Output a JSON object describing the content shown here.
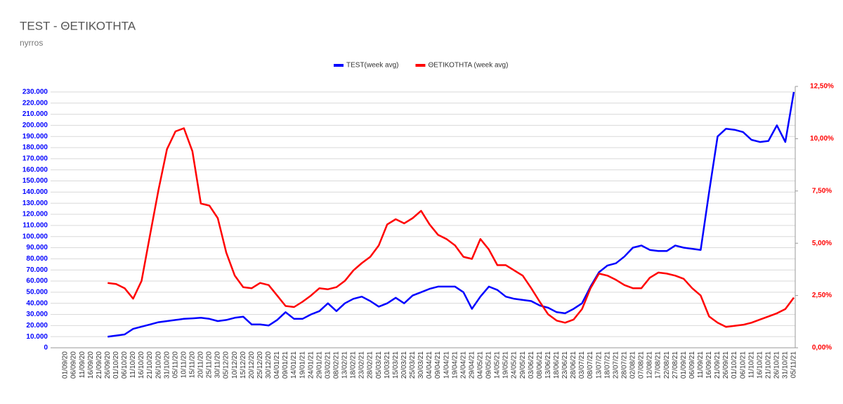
{
  "chart_data": {
    "type": "line",
    "title": "TEST - ΘΕΤΙΚΟΤΗΤΑ",
    "subtitle": "nyrros",
    "categories": [
      "01/09/20",
      "06/09/20",
      "11/09/20",
      "16/09/20",
      "21/09/20",
      "26/09/20",
      "01/10/20",
      "06/10/20",
      "11/10/20",
      "16/10/20",
      "21/10/20",
      "26/10/20",
      "31/10/20",
      "05/11/20",
      "10/11/20",
      "15/11/20",
      "20/11/20",
      "25/11/20",
      "30/11/20",
      "05/12/20",
      "10/12/20",
      "15/12/20",
      "20/12/20",
      "25/12/20",
      "30/12/20",
      "04/01/21",
      "09/01/21",
      "14/01/21",
      "19/01/21",
      "24/01/21",
      "29/01/21",
      "03/02/21",
      "08/02/21",
      "13/02/21",
      "18/02/21",
      "23/02/21",
      "28/02/21",
      "05/03/21",
      "10/03/21",
      "15/03/21",
      "20/03/21",
      "25/03/21",
      "30/03/21",
      "04/04/21",
      "09/04/21",
      "14/04/21",
      "19/04/21",
      "24/04/21",
      "29/04/21",
      "04/05/21",
      "09/05/21",
      "14/05/21",
      "19/05/21",
      "24/05/21",
      "29/05/21",
      "03/06/21",
      "08/06/21",
      "13/06/21",
      "18/06/21",
      "23/06/21",
      "28/06/21",
      "03/07/21",
      "08/07/21",
      "13/07/21",
      "18/07/21",
      "23/07/21",
      "28/07/21",
      "02/08/21",
      "07/08/21",
      "12/08/21",
      "17/08/21",
      "22/08/21",
      "27/08/21",
      "01/09/21",
      "06/09/21",
      "11/09/21",
      "16/09/21",
      "21/09/21",
      "26/09/21",
      "01/10/21",
      "06/10/21",
      "11/10/21",
      "16/10/21",
      "21/10/21",
      "26/10/21",
      "31/10/21",
      "05/11/21"
    ],
    "series": [
      {
        "name": "TEST(week avg)",
        "color": "#0000ff",
        "axis": "y",
        "values": [
          null,
          null,
          null,
          null,
          null,
          10000,
          11000,
          12000,
          17000,
          19000,
          21000,
          23000,
          24000,
          25000,
          26000,
          26500,
          27000,
          26000,
          24000,
          25000,
          27000,
          28000,
          21000,
          21000,
          20000,
          25000,
          32000,
          26000,
          26000,
          30000,
          33000,
          40000,
          33000,
          40000,
          44000,
          46000,
          42000,
          37000,
          40000,
          45000,
          40000,
          47000,
          50000,
          53000,
          55000,
          55000,
          55000,
          50000,
          35000,
          46000,
          55000,
          52000,
          46000,
          44000,
          43000,
          42000,
          38000,
          36000,
          32000,
          31000,
          35000,
          40000,
          55000,
          68000,
          74000,
          76000,
          82000,
          90000,
          92000,
          88000,
          87000,
          87000,
          92000,
          90000,
          89000,
          88000,
          140000,
          190000,
          197000,
          196000,
          194000,
          187000,
          185000,
          186000,
          200000,
          185000,
          230000
        ]
      },
      {
        "name": "ΘΕΤΙΚΟΤΗΤΑ (week avg)",
        "color": "#ff0000",
        "axis": "y2",
        "values": [
          null,
          null,
          null,
          null,
          null,
          3.1,
          3.05,
          2.85,
          2.35,
          3.2,
          5.4,
          7.55,
          9.5,
          10.35,
          10.5,
          9.4,
          6.9,
          6.8,
          6.2,
          4.55,
          3.45,
          2.9,
          2.85,
          3.1,
          3.0,
          2.5,
          2.0,
          1.95,
          2.2,
          2.5,
          2.85,
          2.8,
          2.9,
          3.2,
          3.7,
          4.05,
          4.35,
          4.9,
          5.9,
          6.15,
          5.95,
          6.2,
          6.55,
          5.9,
          5.4,
          5.2,
          4.9,
          4.35,
          4.25,
          5.2,
          4.7,
          3.95,
          3.95,
          3.7,
          3.45,
          2.85,
          2.2,
          1.6,
          1.3,
          1.2,
          1.35,
          1.85,
          2.85,
          3.55,
          3.45,
          3.25,
          3.0,
          2.85,
          2.85,
          3.35,
          3.6,
          3.55,
          3.45,
          3.3,
          2.85,
          2.5,
          1.5,
          1.2,
          1.0,
          1.05,
          1.1,
          1.2,
          1.35,
          1.5,
          1.65,
          1.85,
          2.4
        ]
      }
    ],
    "ylim": [
      0,
      235000
    ],
    "yticks": [
      0,
      {
        "value": 10000,
        "label": "10.000"
      },
      {
        "value": 20000,
        "label": "20.000"
      },
      {
        "value": 30000,
        "label": "30.000"
      },
      {
        "value": 40000,
        "label": "40.000"
      },
      {
        "value": 50000,
        "label": "50.000"
      },
      {
        "value": 60000,
        "label": "60.000"
      },
      {
        "value": 70000,
        "label": "70.000"
      },
      {
        "value": 80000,
        "label": "80.000"
      },
      {
        "value": 90000,
        "label": "90.000"
      },
      {
        "value": 100000,
        "label": "100.000"
      },
      {
        "value": 110000,
        "label": "110.000"
      },
      {
        "value": 120000,
        "label": "120.000"
      },
      {
        "value": 130000,
        "label": "130.000"
      },
      {
        "value": 140000,
        "label": "140.000"
      },
      {
        "value": 150000,
        "label": "150.000"
      },
      {
        "value": 160000,
        "label": "160.000"
      },
      {
        "value": 170000,
        "label": "170.000"
      },
      {
        "value": 180000,
        "label": "180.000"
      },
      {
        "value": 190000,
        "label": "190.000"
      },
      {
        "value": 200000,
        "label": "200.000"
      },
      {
        "value": 210000,
        "label": "210.000"
      },
      {
        "value": 220000,
        "label": "220.000"
      },
      {
        "value": 230000,
        "label": "230.000"
      }
    ],
    "y2lim": [
      0,
      12.5
    ],
    "y2ticks": [
      {
        "value": 0,
        "label": "0,00%"
      },
      {
        "value": 2.5,
        "label": "2,50%"
      },
      {
        "value": 5,
        "label": "5,00%"
      },
      {
        "value": 7.5,
        "label": "7,50%"
      },
      {
        "value": 10,
        "label": "10,00%"
      },
      {
        "value": 12.5,
        "label": "12,50%"
      }
    ],
    "grid": true,
    "legend": "top"
  }
}
